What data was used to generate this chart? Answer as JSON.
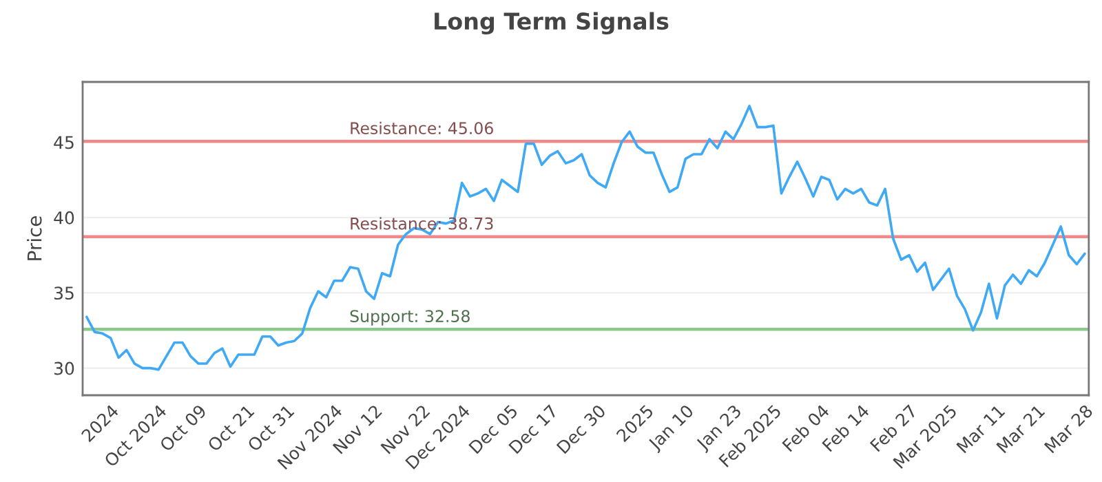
{
  "chart_data": {
    "type": "line",
    "title": "Long Term Signals",
    "ylabel": "Price",
    "categories": [
      null,
      null,
      null,
      "2024",
      null,
      null,
      null,
      null,
      null,
      "Oct 2024",
      null,
      null,
      null,
      null,
      "Oct 09",
      null,
      null,
      null,
      null,
      null,
      "Oct 21",
      null,
      null,
      null,
      null,
      "Oct 31",
      null,
      null,
      null,
      null,
      null,
      "Nov 2024",
      null,
      null,
      null,
      null,
      "Nov 12",
      null,
      null,
      null,
      null,
      null,
      "Nov 22",
      null,
      null,
      null,
      null,
      "Dec 2024",
      null,
      null,
      null,
      null,
      null,
      "Dec 05",
      null,
      null,
      null,
      null,
      "Dec 17",
      null,
      null,
      null,
      null,
      null,
      "Dec 30",
      null,
      null,
      null,
      null,
      null,
      "2025",
      null,
      null,
      null,
      null,
      "Jan 10",
      null,
      null,
      null,
      null,
      null,
      "Jan 23",
      null,
      null,
      null,
      null,
      "Feb 2025",
      null,
      null,
      null,
      null,
      null,
      "Feb 04",
      null,
      null,
      null,
      null,
      "Feb 14",
      null,
      null,
      null,
      null,
      null,
      "Feb 27",
      null,
      null,
      null,
      null,
      "Mar 2025",
      null,
      null,
      null,
      null,
      null,
      "Mar 11",
      null,
      null,
      null,
      null,
      "Mar 21",
      null,
      null,
      null,
      null,
      null,
      "Mar 28"
    ],
    "series": [
      {
        "color": "#3fa9f5",
        "values": [
          33.4,
          32.4,
          32.3,
          32.0,
          30.7,
          31.2,
          30.3,
          30.0,
          30.0,
          29.9,
          30.8,
          31.7,
          31.7,
          30.8,
          30.3,
          30.3,
          31.0,
          31.3,
          30.1,
          30.9,
          30.9,
          30.9,
          32.1,
          32.1,
          31.5,
          31.7,
          31.8,
          32.3,
          34.0,
          35.1,
          34.7,
          35.8,
          35.8,
          36.7,
          36.6,
          35.1,
          34.6,
          36.3,
          36.1,
          38.2,
          38.9,
          39.3,
          39.2,
          38.9,
          39.7,
          39.6,
          39.8,
          42.3,
          41.4,
          41.6,
          41.9,
          41.1,
          42.5,
          42.1,
          41.7,
          44.9,
          44.9,
          43.5,
          44.1,
          44.4,
          43.6,
          43.8,
          44.2,
          42.8,
          42.3,
          42.0,
          43.6,
          45.0,
          45.7,
          44.7,
          44.3,
          44.3,
          42.9,
          41.7,
          42.0,
          43.9,
          44.2,
          44.2,
          45.2,
          44.6,
          45.7,
          45.2,
          46.2,
          47.4,
          46.0,
          46.0,
          46.1,
          41.6,
          42.7,
          43.7,
          42.6,
          41.4,
          42.7,
          42.5,
          41.2,
          41.9,
          41.6,
          41.9,
          41.0,
          40.8,
          41.9,
          38.6,
          37.2,
          37.5,
          36.4,
          37.0,
          35.2,
          35.9,
          36.6,
          34.8,
          33.9,
          32.5,
          33.7,
          35.6,
          33.3,
          35.5,
          36.2,
          35.6,
          36.5,
          36.1,
          37.0,
          38.2,
          39.4,
          37.5,
          36.9,
          37.6
        ]
      }
    ],
    "ylim": [
      28.2,
      49.0
    ],
    "yticks": [
      30,
      35,
      40,
      45
    ],
    "grid": "y",
    "ref_lines": [
      {
        "axis": "y",
        "value": 45.06,
        "label": "Resistance: 45.06",
        "color": "#f08a8a"
      },
      {
        "axis": "y",
        "value": 38.73,
        "label": "Resistance: 38.73",
        "color": "#f08a8a"
      },
      {
        "axis": "y",
        "value": 32.58,
        "label": "Support: 32.58",
        "color": "#8cc98c"
      }
    ]
  }
}
